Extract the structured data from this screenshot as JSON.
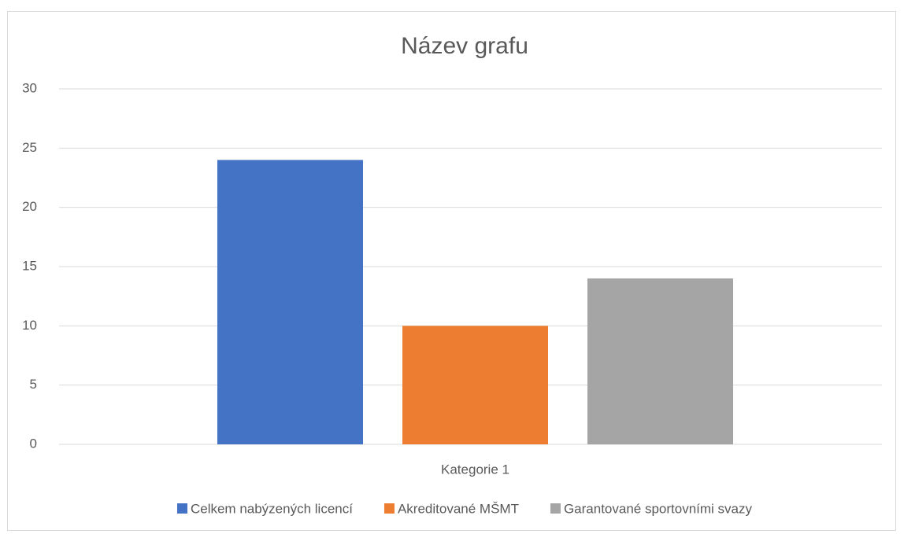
{
  "chart_data": {
    "type": "bar",
    "title": "Název grafu",
    "categories": [
      "Kategorie 1"
    ],
    "series": [
      {
        "name": "Celkem nabýzených licencí",
        "color": "#4472c4",
        "values": [
          24
        ]
      },
      {
        "name": "Akreditované MŠMT",
        "color": "#ed7d31",
        "values": [
          10
        ]
      },
      {
        "name": "Garantované sportovními svazy",
        "color": "#a5a5a5",
        "values": [
          14
        ]
      }
    ],
    "ylim": [
      0,
      30
    ],
    "yticks": [
      0,
      5,
      10,
      15,
      20,
      25,
      30
    ],
    "grid": true,
    "legend": "bottom"
  }
}
